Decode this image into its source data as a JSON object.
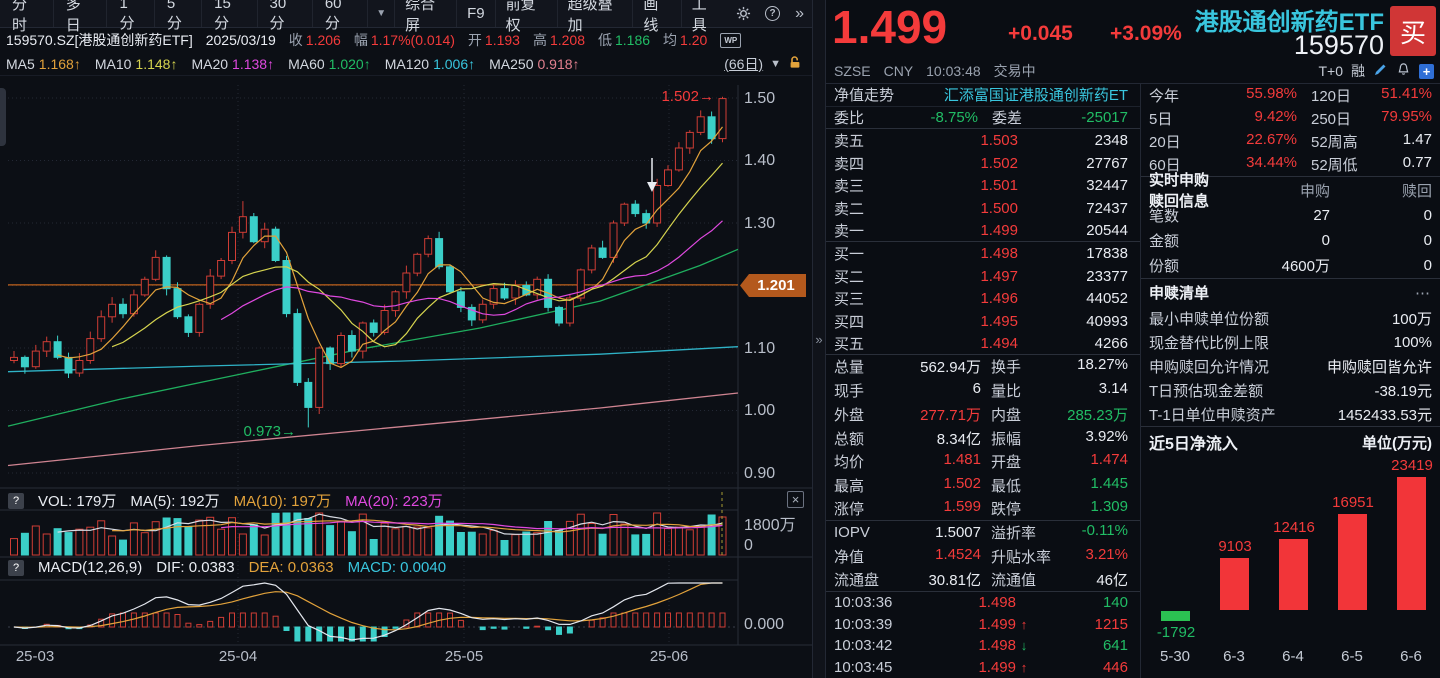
{
  "toolbar": {
    "tabs": [
      "分时",
      "多日",
      "1分",
      "5分",
      "15分",
      "30分",
      "60分"
    ],
    "dropdown": "▼",
    "actions": [
      "综合屏",
      "F9",
      "前复权",
      "超级叠加",
      "画线",
      "工具"
    ],
    "help": "?",
    "more": "»"
  },
  "info_bar": {
    "symbol": "159570.SZ[港股通创新药ETF]",
    "date": "2025/03/19",
    "fields": [
      {
        "label": "收",
        "value": "1.206",
        "color": "r"
      },
      {
        "label": "幅",
        "value": "1.17%(0.014)",
        "color": "r"
      },
      {
        "label": "开",
        "value": "1.193",
        "color": "r"
      },
      {
        "label": "高",
        "value": "1.208",
        "color": "r"
      },
      {
        "label": "低",
        "value": "1.186",
        "color": "g"
      },
      {
        "label": "均",
        "value": "1.20",
        "color": "r"
      }
    ],
    "wp": "WP"
  },
  "ma_bar": {
    "items": [
      {
        "label": "MA5",
        "value": "1.168↑",
        "color": "or"
      },
      {
        "label": "MA10",
        "value": "1.148↑",
        "color": "ye"
      },
      {
        "label": "MA20",
        "value": "1.138↑",
        "color": "mg"
      },
      {
        "label": "MA60",
        "value": "1.020↑",
        "color": "g"
      },
      {
        "label": "MA120",
        "value": "1.006↑",
        "color": "cy"
      },
      {
        "label": "MA250",
        "value": "0.918↑",
        "color": "pk"
      }
    ],
    "period": "(66日)",
    "collapse": "▼"
  },
  "chart": {
    "y_axis": [
      "1.50",
      "1.40",
      "1.30",
      "1.10",
      "1.00",
      "0.90"
    ],
    "price_marker": "1.201",
    "high_annotation": "1.502→",
    "low_annotation": "0.973→",
    "x_axis": [
      "25-03",
      "25-04",
      "25-05",
      "25-06"
    ]
  },
  "volume_panel": {
    "help": "?",
    "text": "VOL: 179万",
    "ma5": "MA(5): 192万",
    "ma10": "MA(10): 197万",
    "ma20": "MA(20): 223万",
    "y_top": "1800万",
    "y_zero": "0",
    "close": "×"
  },
  "macd_panel": {
    "help": "?",
    "text": "MACD(12,26,9)",
    "dif": "DIF: 0.0383",
    "dea": "DEA: 0.0363",
    "macd": "MACD: 0.0040",
    "y_zero": "0.000"
  },
  "quote": {
    "price": "1.499",
    "change": "+0.045",
    "change_pct": "+3.09%",
    "name": "港股通创新药ETF",
    "code": "159570",
    "buy_label": "买",
    "exchange": "SZSE",
    "currency": "CNY",
    "time": "10:03:48",
    "status": "交易中",
    "tplus": "T+0",
    "margin_flag": "融"
  },
  "nav": {
    "label": "净值走势",
    "value": "汇添富国证港股通创新药ET"
  },
  "weibi": {
    "label": "委比",
    "value": "-8.75%",
    "label2": "委差",
    "value2": "-25017"
  },
  "order_book": {
    "asks": [
      {
        "name": "卖五",
        "price": "1.503",
        "vol": "2348"
      },
      {
        "name": "卖四",
        "price": "1.502",
        "vol": "27767"
      },
      {
        "name": "卖三",
        "price": "1.501",
        "vol": "32447"
      },
      {
        "name": "卖二",
        "price": "1.500",
        "vol": "72437"
      },
      {
        "name": "卖一",
        "price": "1.499",
        "vol": "20544"
      }
    ],
    "bids": [
      {
        "name": "买一",
        "price": "1.498",
        "vol": "17838"
      },
      {
        "name": "买二",
        "price": "1.497",
        "vol": "23377"
      },
      {
        "name": "买三",
        "price": "1.496",
        "vol": "44052"
      },
      {
        "name": "买四",
        "price": "1.495",
        "vol": "40993"
      },
      {
        "name": "买五",
        "price": "1.494",
        "vol": "4266"
      }
    ]
  },
  "stats": {
    "rows": [
      [
        {
          "label": "总量",
          "value": "562.94万",
          "color": "w"
        },
        {
          "label": "换手",
          "value": "18.27%",
          "color": "w"
        }
      ],
      [
        {
          "label": "现手",
          "value": "6",
          "color": "w"
        },
        {
          "label": "量比",
          "value": "3.14",
          "color": "w"
        }
      ],
      [
        {
          "label": "外盘",
          "value": "277.71万",
          "color": "r"
        },
        {
          "label": "内盘",
          "value": "285.23万",
          "color": "g"
        }
      ],
      [
        {
          "label": "总额",
          "value": "8.34亿",
          "color": "w"
        },
        {
          "label": "振幅",
          "value": "3.92%",
          "color": "w"
        }
      ],
      [
        {
          "label": "均价",
          "value": "1.481",
          "color": "r"
        },
        {
          "label": "开盘",
          "value": "1.474",
          "color": "r"
        }
      ],
      [
        {
          "label": "最高",
          "value": "1.502",
          "color": "r"
        },
        {
          "label": "最低",
          "value": "1.445",
          "color": "g"
        }
      ],
      [
        {
          "label": "涨停",
          "value": "1.599",
          "color": "r"
        },
        {
          "label": "跌停",
          "value": "1.309",
          "color": "g"
        }
      ],
      [
        {
          "label": "IOPV",
          "value": "1.5007",
          "color": "w"
        },
        {
          "label": "溢折率",
          "value": "-0.11%",
          "color": "g"
        }
      ],
      [
        {
          "label": "净值",
          "value": "1.4524",
          "color": "r"
        },
        {
          "label": "升贴水率",
          "value": "3.21%",
          "color": "r"
        }
      ],
      [
        {
          "label": "流通盘",
          "value": "30.81亿",
          "color": "w"
        },
        {
          "label": "流通值",
          "value": "46亿",
          "color": "w"
        }
      ]
    ]
  },
  "returns": {
    "rows": [
      {
        "l1": "今年",
        "v1": "55.98%",
        "c1": "r",
        "l2": "120日",
        "v2": "51.41%",
        "c2": "r"
      },
      {
        "l1": "5日",
        "v1": "9.42%",
        "c1": "r",
        "l2": "250日",
        "v2": "79.95%",
        "c2": "r"
      },
      {
        "l1": "20日",
        "v1": "22.67%",
        "c1": "r",
        "l2": "52周高",
        "v2": "1.47",
        "c2": "w"
      },
      {
        "l1": "60日",
        "v1": "34.44%",
        "c1": "r",
        "l2": "52周低",
        "v2": "0.77",
        "c2": "w"
      }
    ]
  },
  "subscription": {
    "title": "实时申购赎回信息",
    "col1": "申购",
    "col2": "赎回",
    "rows": [
      {
        "label": "笔数",
        "v1": "27",
        "v2": "0"
      },
      {
        "label": "金额",
        "v1": "0",
        "v2": "0"
      },
      {
        "label": "份额",
        "v1": "4600万",
        "v2": "0"
      }
    ]
  },
  "redemption": {
    "title": "申赎清单",
    "more": "⋯",
    "rows": [
      {
        "label": "最小申赎单位份额",
        "value": "100万"
      },
      {
        "label": "现金替代比例上限",
        "value": "100%"
      },
      {
        "label": "申购赎回允许情况",
        "value": "申购赎回皆允许"
      },
      {
        "label": "T日预估现金差额",
        "value": "-38.19元"
      },
      {
        "label": "T-1日单位申赎资产",
        "value": "1452433.53元"
      }
    ]
  },
  "flow": {
    "title": "近5日净流入",
    "unit": "单位(万元)"
  },
  "ticks": [
    {
      "time": "10:03:36",
      "price": "1.498",
      "arrow": "",
      "ac": "",
      "vol": "140",
      "vc": "g"
    },
    {
      "time": "10:03:39",
      "price": "1.499",
      "arrow": "↑",
      "ac": "r",
      "vol": "1215",
      "vc": "r"
    },
    {
      "time": "10:03:42",
      "price": "1.498",
      "arrow": "↓",
      "ac": "g",
      "vol": "641",
      "vc": "g"
    },
    {
      "time": "10:03:45",
      "price": "1.499",
      "arrow": "↑",
      "ac": "r",
      "vol": "446",
      "vc": "r"
    }
  ],
  "chart_data": [
    {
      "type": "candlestick",
      "title": "港股通创新药ETF 159570 日K (66日)",
      "ylim": [
        0.88,
        1.54
      ],
      "x_labels": [
        "25-03",
        "25-04",
        "25-05",
        "25-06"
      ],
      "closes": [
        1.085,
        1.07,
        1.095,
        1.11,
        1.085,
        1.06,
        1.08,
        1.115,
        1.15,
        1.17,
        1.155,
        1.185,
        1.21,
        1.245,
        1.195,
        1.15,
        1.125,
        1.17,
        1.215,
        1.24,
        1.285,
        1.31,
        1.27,
        1.29,
        1.24,
        1.155,
        1.045,
        1.005,
        1.1,
        1.075,
        1.12,
        1.095,
        1.14,
        1.125,
        1.16,
        1.19,
        1.22,
        1.25,
        1.275,
        1.23,
        1.19,
        1.165,
        1.145,
        1.17,
        1.195,
        1.18,
        1.2,
        1.185,
        1.21,
        1.165,
        1.14,
        1.18,
        1.225,
        1.26,
        1.245,
        1.3,
        1.33,
        1.315,
        1.3,
        1.36,
        1.385,
        1.42,
        1.445,
        1.47,
        1.435,
        1.499
      ],
      "low_wick": {
        "index": 27,
        "price": 0.973
      },
      "high_wick": {
        "index": 65,
        "price": 1.502
      },
      "last_price_line": 1.201
    },
    {
      "type": "bar",
      "title": "近5日净流入",
      "ylabel": "万元",
      "categories": [
        "5-30",
        "6-3",
        "6-4",
        "6-5",
        "6-6"
      ],
      "values": [
        -1792,
        9103,
        12416,
        16951,
        23419
      ],
      "positive_color": "#f23539",
      "negative_color": "#2bc152"
    }
  ]
}
